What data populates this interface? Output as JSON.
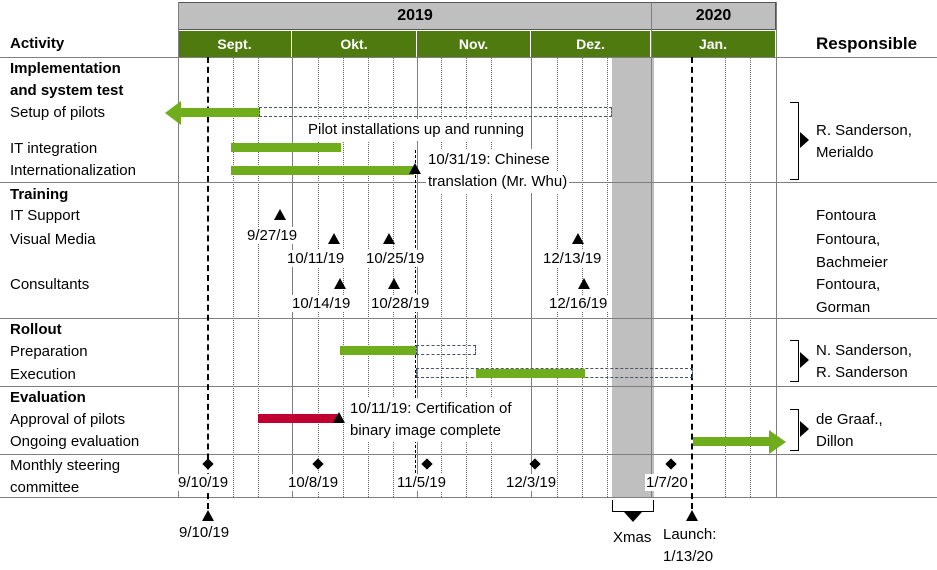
{
  "years": [
    {
      "label": "2019"
    },
    {
      "label": "2020"
    }
  ],
  "months": [
    {
      "label": "Sept."
    },
    {
      "label": "Okt."
    },
    {
      "label": "Nov."
    },
    {
      "label": "Dez."
    },
    {
      "label": "Jan."
    }
  ],
  "headers": {
    "activity": "Activity",
    "responsible": "Responsible"
  },
  "sections": {
    "implementation": {
      "title_line1": "Implementation",
      "title_line2": "and system test",
      "setup": "Setup of pilots",
      "it_integration": "IT integration",
      "internationalization": "Internationalization",
      "note_pilot": "Pilot installations up and running",
      "note_chinese_1": "10/31/19: Chinese",
      "note_chinese_2": "translation (Mr. Whu)",
      "resp_1": "R. Sanderson,",
      "resp_2": "Merialdo"
    },
    "training": {
      "title": "Training",
      "it_support": "IT Support",
      "visual_media": "Visual Media",
      "consultants": "Consultants",
      "dates": {
        "d1": "9/27/19",
        "d2": "10/11/19",
        "d3": "10/25/19",
        "d4": "12/13/19",
        "d5": "10/14/19",
        "d6": "10/28/19",
        "d7": "12/16/19"
      },
      "resp_it": "Fontoura",
      "resp_vm_1": "Fontoura,",
      "resp_vm_2": "Bachmeier",
      "resp_c_1": "Fontoura,",
      "resp_c_2": "Gorman"
    },
    "rollout": {
      "title": "Rollout",
      "preparation": "Preparation",
      "execution": "Execution",
      "resp_1": "N. Sanderson,",
      "resp_2": "R. Sanderson"
    },
    "evaluation": {
      "title": "Evaluation",
      "approval": "Approval of pilots",
      "ongoing": "Ongoing evaluation",
      "note_1": "10/11/19: Certification of",
      "note_2": "binary image complete",
      "resp_1": "de Graaf.,",
      "resp_2": "Dillon"
    },
    "steering": {
      "label_1": "Monthly steering",
      "label_2": "committee",
      "dates": {
        "d1": "9/10/19",
        "d2": "10/8/19",
        "d3": "11/5/19",
        "d4": "12/3/19",
        "d5": "1/7/20"
      }
    }
  },
  "bottom": {
    "kickoff": "9/10/19",
    "xmas": "Xmas",
    "launch_1": "Launch:",
    "launch_2": "1/13/20"
  },
  "colors": {
    "header_green": "#4e7a10",
    "bar_green": "#70ad1c",
    "bar_red": "#c00030",
    "xmas_gray": "#bfbfbf",
    "dash_blue": "#44546a"
  }
}
